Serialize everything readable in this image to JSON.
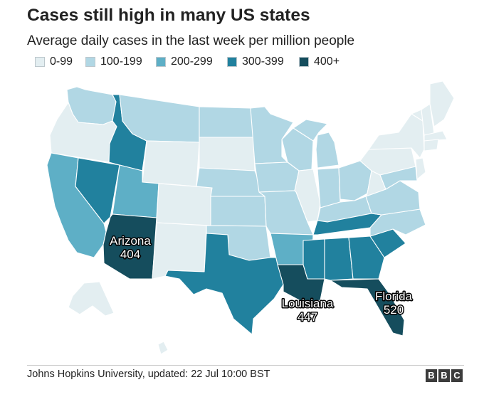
{
  "title": "Cases still high in many US states",
  "subtitle": "Average daily cases in the last week per million people",
  "legend": [
    {
      "label": "0-99",
      "color": "#e3eef1"
    },
    {
      "label": "100-199",
      "color": "#b1d7e4"
    },
    {
      "label": "200-299",
      "color": "#5eafc6"
    },
    {
      "label": "300-399",
      "color": "#21819e"
    },
    {
      "label": "400+",
      "color": "#154d5d"
    }
  ],
  "callouts": {
    "arizona": {
      "name": "Arizona",
      "value": "404"
    },
    "louisiana": {
      "name": "Louisiana",
      "value": "447"
    },
    "florida": {
      "name": "Florida",
      "value": "520"
    }
  },
  "source": "Johns Hopkins University, updated: 22 Jul 10:00 BST",
  "logo": {
    "letters": [
      "B",
      "B",
      "C"
    ]
  }
}
